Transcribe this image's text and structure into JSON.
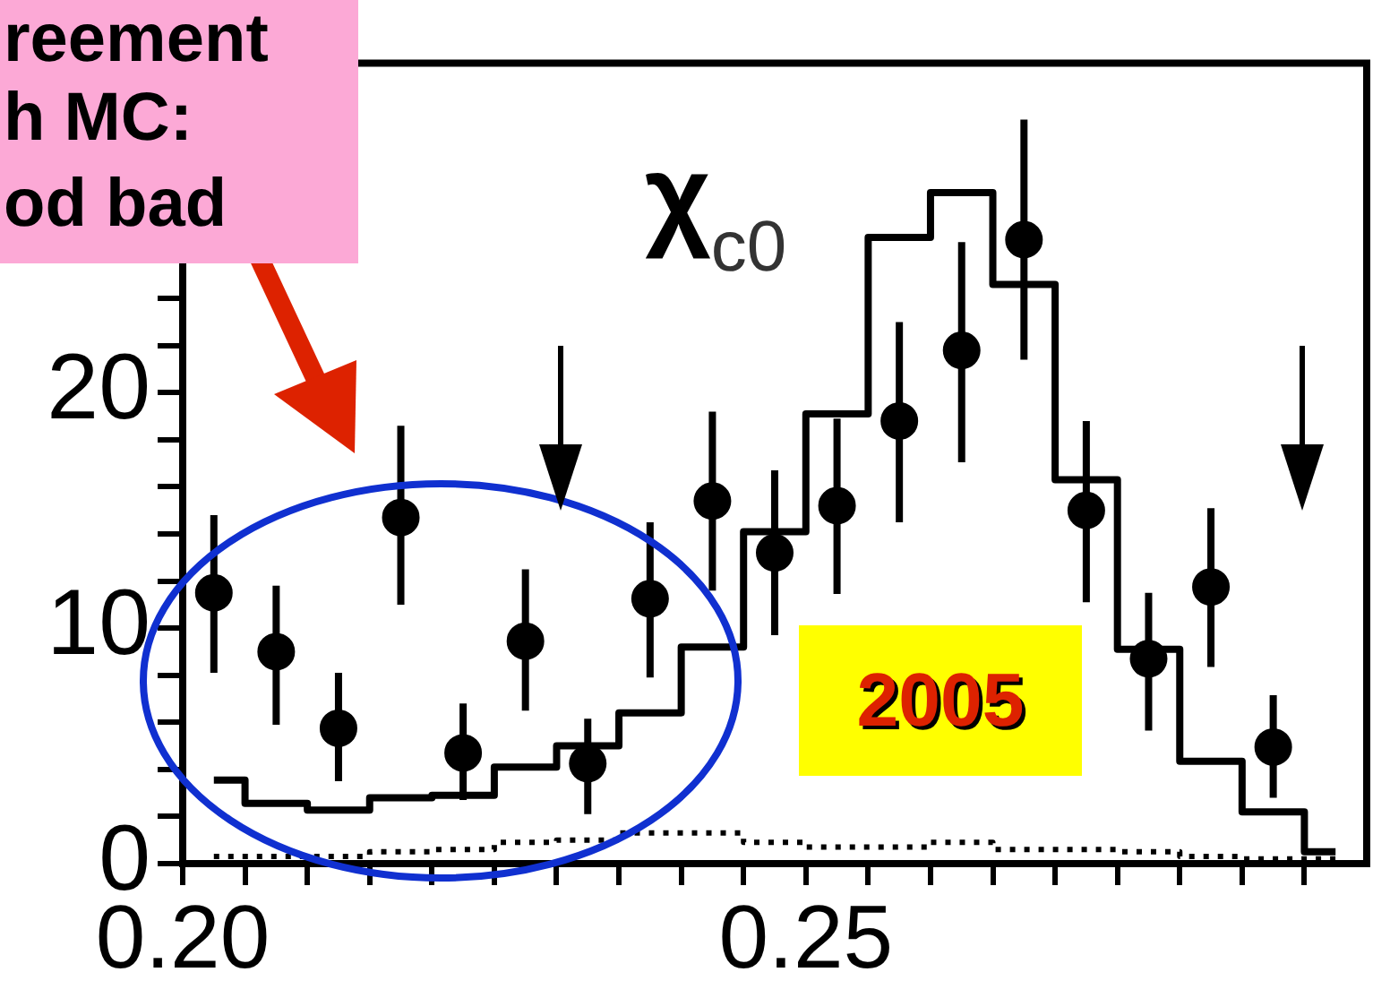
{
  "chart_data": {
    "type": "step",
    "x": [
      0.2025,
      0.2075,
      0.2125,
      0.2175,
      0.2225,
      0.2275,
      0.2325,
      0.2375,
      0.2425,
      0.2475,
      0.2525,
      0.2575,
      0.2625,
      0.2675,
      0.2725,
      0.2775,
      0.2825,
      0.2875,
      0.2925
    ],
    "xlim": [
      0.2,
      0.295
    ],
    "xticks": [
      {
        "value": 0.2,
        "label": "0.20"
      },
      {
        "value": 0.205,
        "label": null
      },
      {
        "value": 0.21,
        "label": null
      },
      {
        "value": 0.215,
        "label": null
      },
      {
        "value": 0.22,
        "label": null
      },
      {
        "value": 0.225,
        "label": null
      },
      {
        "value": 0.23,
        "label": null
      },
      {
        "value": 0.235,
        "label": null
      },
      {
        "value": 0.24,
        "label": null
      },
      {
        "value": 0.245,
        "label": null
      },
      {
        "value": 0.25,
        "label": "0.25"
      },
      {
        "value": 0.255,
        "label": null
      },
      {
        "value": 0.26,
        "label": null
      },
      {
        "value": 0.265,
        "label": null
      },
      {
        "value": 0.27,
        "label": null
      },
      {
        "value": 0.275,
        "label": null
      },
      {
        "value": 0.28,
        "label": null
      },
      {
        "value": 0.285,
        "label": null
      },
      {
        "value": 0.29,
        "label": null
      }
    ],
    "ylim": [
      0,
      34
    ],
    "yticks": [
      0,
      {
        "value": 2,
        "label": null
      },
      {
        "value": 4,
        "label": null
      },
      {
        "value": 6,
        "label": null
      },
      {
        "value": 8,
        "label": null
      },
      10,
      {
        "value": 12,
        "label": null
      },
      {
        "value": 14,
        "label": null
      },
      {
        "value": 16,
        "label": null
      },
      {
        "value": 18,
        "label": null
      },
      20,
      {
        "value": 22,
        "label": null
      },
      {
        "value": 24,
        "label": null
      },
      {
        "value": 26,
        "label": null
      },
      {
        "value": 28,
        "label": null
      },
      {
        "value": 30,
        "label": null
      },
      {
        "value": 32,
        "label": null
      }
    ],
    "grid": false,
    "legend": false,
    "series": [
      {
        "color": "#000000",
        "values": [
          3.55,
          2.56,
          2.27,
          2.8,
          2.9,
          4.1,
          5.0,
          6.4,
          9.2,
          14.1,
          19.1,
          26.6,
          28.5,
          24.6,
          16.3,
          9.1,
          4.35,
          2.2,
          0.5
        ]
      },
      {
        "color": "#000000",
        "line_style": "dotted",
        "values": [
          0.3,
          0.3,
          0.3,
          0.5,
          0.6,
          0.9,
          1.0,
          1.3,
          1.3,
          0.9,
          0.7,
          0.7,
          0.9,
          0.6,
          0.6,
          0.5,
          0.3,
          0.2,
          0.2
        ]
      },
      {
        "type": "scatter",
        "color": "#000000",
        "marker": "circle",
        "x": [
          0.2025,
          0.2075,
          0.2125,
          0.2175,
          0.2225,
          0.2275,
          0.2325,
          0.2375,
          0.2425,
          0.2475,
          0.2525,
          0.2575,
          0.2625,
          0.2675,
          0.2725,
          0.2775,
          0.2825,
          0.2875
        ],
        "values": [
          11.5,
          9.0,
          5.75,
          14.7,
          4.7,
          9.45,
          4.25,
          11.25,
          15.4,
          13.2,
          15.2,
          18.8,
          21.8,
          26.5,
          15.0,
          8.7,
          11.75,
          4.95
        ],
        "errors": [
          [
            8.1,
            14.8
          ],
          [
            5.9,
            11.8
          ],
          [
            3.5,
            8.1
          ],
          [
            11.0,
            18.6
          ],
          [
            2.7,
            6.8
          ],
          [
            6.5,
            12.5
          ],
          [
            2.1,
            6.15
          ],
          [
            7.9,
            14.5
          ],
          [
            11.6,
            19.2
          ],
          [
            9.7,
            16.7
          ],
          [
            11.45,
            18.9
          ],
          [
            14.5,
            23.0
          ],
          [
            17.05,
            26.4
          ],
          [
            21.4,
            31.6
          ],
          [
            11.1,
            18.8
          ],
          [
            5.65,
            11.5
          ],
          [
            8.35,
            15.1
          ],
          [
            2.8,
            7.15
          ]
        ]
      }
    ],
    "annotations": [
      "χ$_{c0}$",
      "2005",
      "reement",
      "h MC:",
      "od   bad"
    ]
  }
}
